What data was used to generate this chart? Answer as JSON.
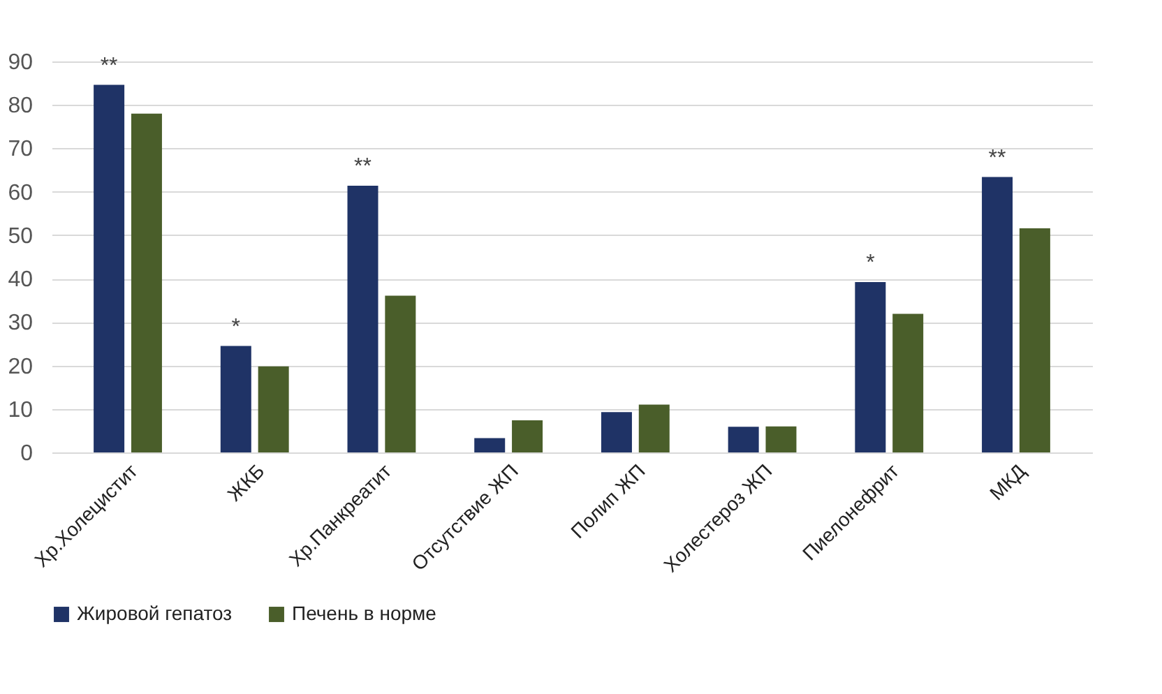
{
  "chart_data": {
    "type": "bar",
    "categories": [
      "Хр.Холецистит",
      "ЖКБ",
      "Хр.Панкреатит",
      "Отсутствие ЖП",
      "Полип ЖП",
      "Холестероз ЖП",
      "Пиелонефрит",
      "МКД"
    ],
    "series": [
      {
        "name": "Жировой гепатоз",
        "color": "#1f3366",
        "values": [
          84.6,
          24.5,
          61.4,
          3.3,
          9.3,
          5.9,
          39.2,
          63.4
        ]
      },
      {
        "name": "Печень в норме",
        "color": "#4a5e2a",
        "values": [
          78,
          19.8,
          36.1,
          7.4,
          11,
          6,
          31.9,
          51.6
        ]
      }
    ],
    "ylim": [
      0,
      90
    ],
    "yticks": [
      0,
      10,
      20,
      30,
      40,
      50,
      60,
      70,
      80,
      90
    ],
    "grid": "y",
    "legend": "bottom",
    "annotations": [
      {
        "text": "**",
        "x": "Хр.Холецистит",
        "y": 84.6
      },
      {
        "text": "*",
        "x": "ЖКБ",
        "y": 24.5
      },
      {
        "text": "**",
        "x": "Хр.Панкреатит",
        "y": 61.4
      },
      {
        "text": "*",
        "x": "Пиелонефрит",
        "y": 39.2
      },
      {
        "text": "**",
        "x": "МКД",
        "y": 63.4
      }
    ]
  }
}
